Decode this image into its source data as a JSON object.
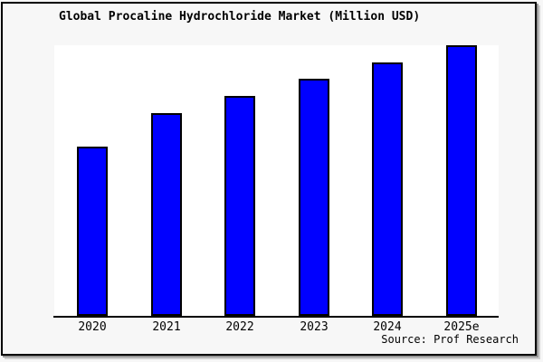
{
  "chart_data": {
    "type": "bar",
    "title": "Global Procaline Hydrochloride Market (Million USD)",
    "categories": [
      "2020",
      "2021",
      "2022",
      "2023",
      "2024",
      "2025e"
    ],
    "values": [
      62.5,
      75.0,
      81.3,
      87.7,
      93.7,
      100
    ],
    "values_note": "y-axis is unlabeled in the image; values are estimated relative units normalized to 2025e = 100",
    "xlabel": "",
    "ylabel": "",
    "ylim": [
      0,
      100
    ],
    "grid": false,
    "legend": null,
    "bar_color": "#0000ff",
    "bar_border_color": "#000000"
  },
  "source": {
    "label": "Source: Prof Research"
  },
  "colors": {
    "card_background": "#f7f7f7",
    "plot_background": "#ffffff",
    "frame_border": "#000000",
    "axis_color": "#000000",
    "bar_fill": "#0000ff",
    "text": "#000000"
  }
}
